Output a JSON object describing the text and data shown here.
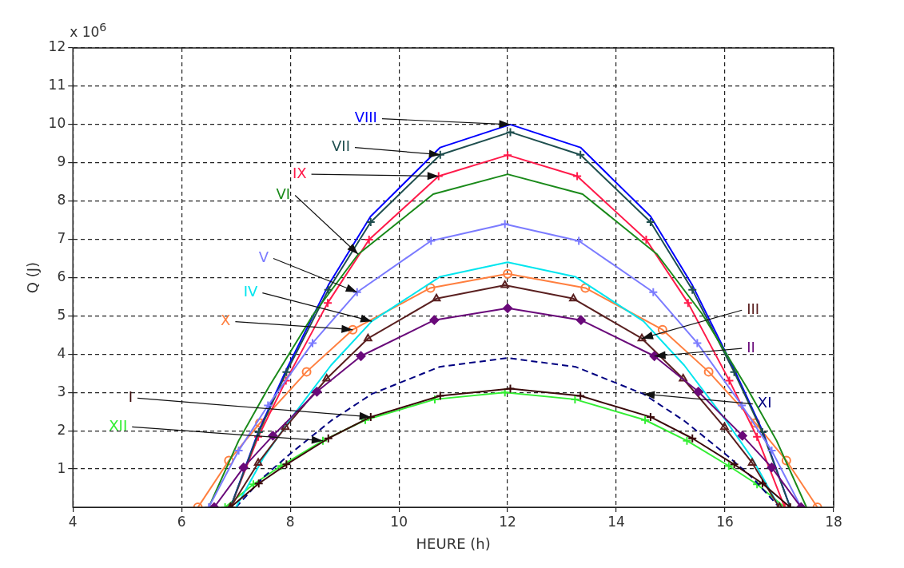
{
  "chart_data": {
    "type": "line",
    "xlabel": "HEURE (h)",
    "ylabel": "Q (J)",
    "annotations": [
      "x 10$^{6}$"
    ],
    "xlim": [
      4,
      18
    ],
    "xticks": [
      4,
      6,
      8,
      10,
      12,
      14,
      16,
      18
    ],
    "ylim": [
      0,
      12
    ],
    "yticks": [
      1,
      2,
      3,
      4,
      5,
      6,
      7,
      8,
      9,
      10,
      11,
      12
    ],
    "grid": true,
    "series": [
      {
        "name": "I",
        "color": "#3a0a0a",
        "marker": "cross",
        "x": [
          6.9,
          7.42,
          7.93,
          8.7,
          9.48,
          10.76,
          12.05,
          13.34,
          14.63,
          15.4,
          16.17,
          16.69,
          17.2
        ],
        "values": [
          0,
          0.62,
          1.12,
          1.8,
          2.36,
          2.91,
          3.1,
          2.91,
          2.36,
          1.8,
          1.12,
          0.62,
          0
        ]
      },
      {
        "name": "II",
        "color": "#6a0a7a",
        "marker": "diamond",
        "x": [
          6.6,
          7.14,
          7.68,
          8.49,
          9.3,
          10.65,
          12,
          13.35,
          14.7,
          15.51,
          16.32,
          16.86,
          17.4
        ],
        "values": [
          0,
          1.04,
          1.87,
          3.02,
          3.95,
          4.89,
          5.2,
          4.89,
          3.95,
          3.02,
          1.87,
          1.04,
          0
        ]
      },
      {
        "name": "III",
        "color": "#5a2020",
        "marker": "triangle",
        "x": [
          6.9,
          7.41,
          7.91,
          8.67,
          9.43,
          10.69,
          11.95,
          13.21,
          14.47,
          15.23,
          15.99,
          16.5,
          17.0
        ],
        "values": [
          0,
          1.16,
          2.09,
          3.36,
          4.41,
          5.45,
          5.8,
          5.45,
          4.41,
          3.36,
          2.09,
          1.16,
          0
        ]
      },
      {
        "name": "IV",
        "color": "#00e5ee",
        "x": [
          7,
          7.5,
          8,
          8.75,
          9.5,
          10.75,
          12,
          13.25,
          14.5,
          15.25,
          16,
          16.5,
          17
        ],
        "values": [
          0,
          1.28,
          2.3,
          3.71,
          4.86,
          6.02,
          6.4,
          6.02,
          4.86,
          3.71,
          2.3,
          1.28,
          0
        ]
      },
      {
        "name": "V",
        "color": "#7b7bff",
        "marker": "cross",
        "x": [
          6.5,
          7.05,
          7.59,
          8.41,
          9.23,
          10.59,
          11.95,
          13.31,
          14.68,
          15.49,
          16.31,
          16.86,
          17.4
        ],
        "values": [
          0,
          1.48,
          2.66,
          4.29,
          5.62,
          6.96,
          7.4,
          6.96,
          5.62,
          4.29,
          2.66,
          1.48,
          0
        ]
      },
      {
        "name": "VI",
        "color": "#1a8a1a",
        "x": [
          6.5,
          7.05,
          7.6,
          8.43,
          9.25,
          10.63,
          12,
          13.38,
          14.75,
          15.58,
          16.4,
          16.95,
          17.5
        ],
        "values": [
          0,
          1.74,
          3.13,
          5.05,
          6.61,
          8.18,
          8.7,
          8.18,
          6.61,
          5.05,
          3.13,
          1.74,
          0
        ]
      },
      {
        "name": "VII",
        "color": "#1f4f4f",
        "marker": "cross",
        "x": [
          6.9,
          7.42,
          7.93,
          8.7,
          9.48,
          10.76,
          12.05,
          13.34,
          14.63,
          15.4,
          16.17,
          16.69,
          17.2
        ],
        "values": [
          0,
          1.96,
          3.53,
          5.68,
          7.45,
          9.21,
          9.8,
          9.21,
          7.45,
          5.68,
          3.53,
          1.96,
          0
        ]
      },
      {
        "name": "VIII",
        "color": "#0000ff",
        "x": [
          6.9,
          7.42,
          7.93,
          8.7,
          9.48,
          10.76,
          12.05,
          13.34,
          14.63,
          15.4,
          16.17,
          16.69,
          17.2
        ],
        "values": [
          0,
          2,
          3.6,
          5.8,
          7.6,
          9.4,
          10,
          9.4,
          7.6,
          5.8,
          3.6,
          2,
          0
        ]
      },
      {
        "name": "IX",
        "color": "#ff1a4a",
        "marker": "cross",
        "x": [
          6.9,
          7.41,
          7.92,
          8.69,
          9.45,
          10.73,
          12,
          13.28,
          14.55,
          15.32,
          16.08,
          16.59,
          17.1
        ],
        "values": [
          0,
          1.84,
          3.31,
          5.34,
          6.99,
          8.65,
          9.2,
          8.65,
          6.99,
          5.34,
          3.31,
          1.84,
          0
        ]
      },
      {
        "name": "X",
        "color": "#ff7f3f",
        "marker": "circle",
        "x": [
          6.3,
          6.87,
          7.44,
          8.3,
          9.15,
          10.58,
          12,
          13.43,
          14.85,
          15.7,
          16.56,
          17.13,
          17.7
        ],
        "values": [
          0,
          1.22,
          2.2,
          3.54,
          4.64,
          5.73,
          6.1,
          5.73,
          4.64,
          3.54,
          2.2,
          1.22,
          0
        ]
      },
      {
        "name": "XI",
        "color": "#000080",
        "line_style": "dashed",
        "x": [
          7,
          7.5,
          8,
          8.75,
          9.5,
          10.75,
          12,
          13.25,
          14.5,
          15.25,
          16,
          16.5,
          17
        ],
        "values": [
          0,
          0.78,
          1.4,
          2.26,
          2.96,
          3.67,
          3.9,
          3.67,
          2.96,
          2.26,
          1.4,
          0.78,
          0
        ]
      },
      {
        "name": "XII",
        "color": "#33ee33",
        "marker": "cross",
        "x": [
          6.8,
          7.32,
          7.83,
          8.6,
          9.38,
          10.66,
          11.95,
          13.24,
          14.53,
          15.3,
          16.07,
          16.59,
          17.1
        ],
        "values": [
          0,
          0.6,
          1.08,
          1.74,
          2.28,
          2.82,
          3.0,
          2.82,
          2.28,
          1.74,
          1.08,
          0.6,
          0
        ]
      }
    ]
  }
}
